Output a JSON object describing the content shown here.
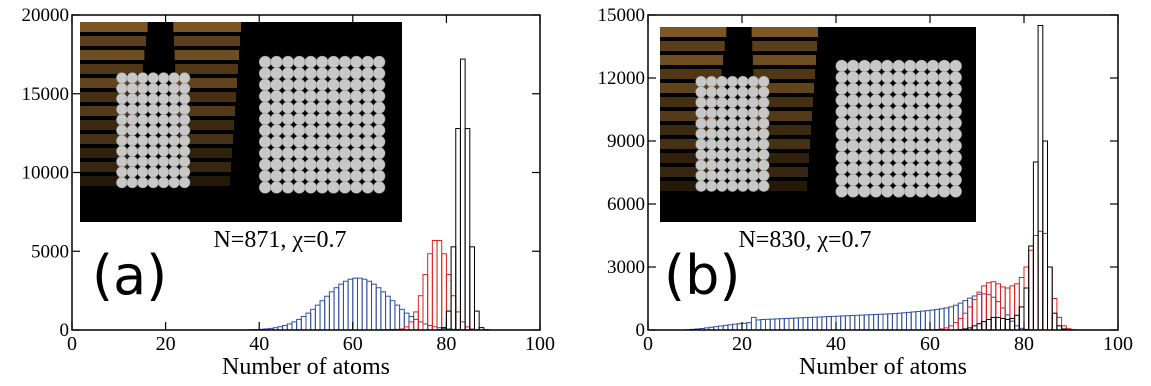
{
  "chart_data": [
    {
      "type": "histogram",
      "label": "(a)",
      "annotation": "N=871, χ=0.7",
      "xlabel": "Number of atoms",
      "xlim": [
        0,
        100
      ],
      "xticks": [
        0,
        20,
        40,
        60,
        80,
        100
      ],
      "ylim": [
        0,
        20000
      ],
      "yticks": [
        0,
        5000,
        10000,
        15000,
        20000
      ],
      "bins": [
        38,
        39,
        40,
        41,
        42,
        43,
        44,
        45,
        46,
        47,
        48,
        49,
        50,
        51,
        52,
        53,
        54,
        55,
        56,
        57,
        58,
        59,
        60,
        61,
        62,
        63,
        64,
        65,
        66,
        67,
        68,
        69,
        70,
        71,
        72,
        73,
        74,
        75,
        76,
        77,
        78,
        79,
        80,
        81,
        82,
        83,
        84,
        85,
        86,
        87,
        88,
        89,
        90
      ],
      "series": [
        {
          "color": "#2f4f9f",
          "values": [
            19,
            29,
            45,
            68,
            101,
            145,
            205,
            285,
            385,
            514,
            671,
            856,
            1072,
            1314,
            1579,
            1859,
            2144,
            2424,
            2684,
            2912,
            3096,
            3225,
            3291,
            3291,
            3225,
            3096,
            2912,
            2684,
            2424,
            2144,
            1859,
            1579,
            1314,
            1072,
            856,
            671,
            514,
            385,
            285,
            205,
            145,
            101,
            68,
            45,
            29,
            19,
            12,
            7,
            4,
            2,
            1,
            0
          ]
        },
        {
          "color": "#e0201e",
          "values": [
            0,
            0,
            0,
            0,
            0,
            0,
            0,
            0,
            0,
            0,
            0,
            0,
            0,
            0,
            0,
            0,
            0,
            0,
            0,
            0,
            0,
            0,
            0,
            0,
            0,
            0,
            0,
            0,
            10,
            20,
            35,
            40,
            65,
            197,
            516,
            1148,
            2175,
            3520,
            4843,
            5684,
            5684,
            4843,
            3520,
            2175,
            1148,
            516,
            197,
            65,
            20,
            5,
            0,
            0
          ]
        },
        {
          "color": "#000000",
          "values": [
            0,
            0,
            0,
            0,
            0,
            0,
            0,
            0,
            0,
            0,
            0,
            0,
            0,
            0,
            0,
            0,
            0,
            0,
            0,
            0,
            0,
            0,
            0,
            0,
            0,
            0,
            0,
            0,
            0,
            0,
            0,
            0,
            0,
            0,
            0,
            0,
            0,
            0,
            0,
            0,
            20,
            151,
            1200,
            5280,
            12790,
            17200,
            12790,
            5280,
            1200,
            150,
            20,
            0
          ]
        }
      ]
    },
    {
      "type": "histogram",
      "label": "(b)",
      "annotation": "N=830, χ=0.7",
      "xlabel": "Number of atoms",
      "xlim": [
        0,
        100
      ],
      "xticks": [
        0,
        20,
        40,
        60,
        80,
        100
      ],
      "ylim": [
        0,
        15000
      ],
      "yticks": [
        0,
        3000,
        6000,
        9000,
        12000,
        15000
      ],
      "bins": [
        8,
        9,
        10,
        11,
        12,
        13,
        14,
        15,
        16,
        17,
        18,
        19,
        20,
        21,
        22,
        23,
        24,
        25,
        26,
        27,
        28,
        29,
        30,
        31,
        32,
        33,
        34,
        35,
        36,
        37,
        38,
        39,
        40,
        41,
        42,
        43,
        44,
        45,
        46,
        47,
        48,
        49,
        50,
        51,
        52,
        53,
        54,
        55,
        56,
        57,
        58,
        59,
        60,
        61,
        62,
        63,
        64,
        65,
        66,
        67,
        68,
        69,
        70,
        71,
        72,
        73,
        74,
        75,
        76,
        77,
        78,
        79,
        80,
        81,
        82,
        83,
        84,
        85,
        86,
        87,
        88,
        89,
        90,
        91,
        92
      ],
      "series": [
        {
          "color": "#2f4f9f",
          "values": [
            10,
            30,
            50,
            70,
            100,
            130,
            160,
            190,
            220,
            250,
            280,
            300,
            320,
            350,
            600,
            480,
            500,
            510,
            520,
            530,
            540,
            550,
            560,
            570,
            580,
            590,
            600,
            610,
            620,
            630,
            640,
            650,
            660,
            670,
            680,
            690,
            700,
            710,
            720,
            730,
            740,
            750,
            760,
            770,
            780,
            800,
            820,
            840,
            860,
            880,
            900,
            920,
            950,
            980,
            1010,
            1050,
            1100,
            1180,
            1280,
            1400,
            1520,
            1620,
            1700,
            1720,
            1680,
            1560,
            1350,
            1050,
            720,
            420,
            200,
            80,
            30,
            10,
            0,
            0,
            0,
            0,
            0,
            0,
            0,
            0,
            0,
            0
          ]
        },
        {
          "color": "#e0201e",
          "values": [
            0,
            0,
            0,
            0,
            0,
            0,
            0,
            0,
            0,
            0,
            0,
            0,
            0,
            0,
            0,
            0,
            0,
            0,
            0,
            0,
            0,
            0,
            0,
            0,
            0,
            0,
            0,
            0,
            0,
            0,
            0,
            0,
            0,
            0,
            0,
            0,
            0,
            0,
            0,
            0,
            0,
            0,
            0,
            0,
            0,
            0,
            0,
            0,
            0,
            0,
            0,
            0,
            0,
            20,
            50,
            100,
            200,
            350,
            550,
            800,
            1100,
            1450,
            1800,
            2100,
            2250,
            2300,
            2200,
            2050,
            2000,
            2100,
            2200,
            2500,
            3000,
            3800,
            4500,
            4700,
            4600,
            3000,
            1500,
            600,
            200,
            60,
            15,
            0
          ]
        },
        {
          "color": "#000000",
          "values": [
            0,
            0,
            0,
            0,
            0,
            0,
            0,
            0,
            0,
            0,
            0,
            0,
            0,
            0,
            0,
            0,
            0,
            0,
            0,
            0,
            0,
            0,
            0,
            0,
            0,
            0,
            0,
            0,
            0,
            0,
            0,
            0,
            0,
            0,
            0,
            0,
            0,
            0,
            0,
            0,
            0,
            0,
            0,
            0,
            0,
            0,
            0,
            0,
            0,
            0,
            0,
            0,
            0,
            0,
            0,
            0,
            0,
            0,
            20,
            50,
            100,
            200,
            300,
            400,
            500,
            600,
            600,
            550,
            500,
            550,
            700,
            1100,
            2000,
            4000,
            8000,
            14500,
            9000,
            3000,
            800,
            200,
            50,
            10,
            0,
            0
          ]
        }
      ]
    }
  ]
}
